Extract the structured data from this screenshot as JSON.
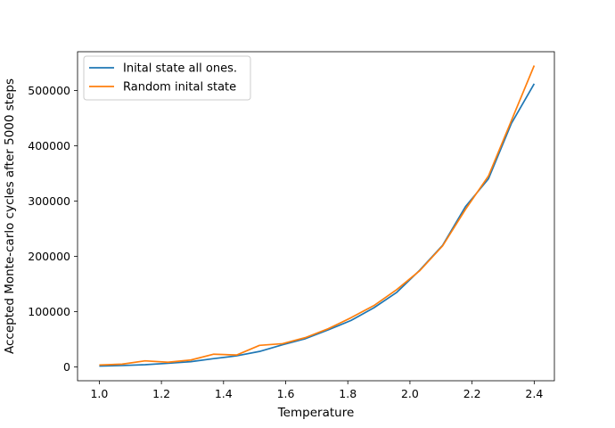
{
  "chart_data": {
    "type": "line",
    "title": "",
    "xlabel": "Temperature",
    "ylabel": "Accepted Monte-carlo cycles after 5000 steps",
    "xlim": [
      0.93,
      2.465
    ],
    "ylim": [
      -25000,
      570000
    ],
    "x_ticks": [
      1.0,
      1.2,
      1.4,
      1.6,
      1.8,
      2.0,
      2.2,
      2.4
    ],
    "x_tick_labels": [
      "1.0",
      "1.2",
      "1.4",
      "1.6",
      "1.8",
      "2.0",
      "2.2",
      "2.4"
    ],
    "y_ticks": [
      0,
      100000,
      200000,
      300000,
      400000,
      500000
    ],
    "y_tick_labels": [
      "0",
      "100000",
      "200000",
      "300000",
      "400000",
      "500000"
    ],
    "grid": false,
    "legend_position": "top-left",
    "x": [
      1.0,
      1.0737,
      1.1474,
      1.2211,
      1.2947,
      1.3684,
      1.4421,
      1.5158,
      1.5895,
      1.6632,
      1.7368,
      1.8105,
      1.8842,
      1.9579,
      2.0316,
      2.1053,
      2.1789,
      2.2526,
      2.3263,
      2.4
    ],
    "series": [
      {
        "name": "Inital state all ones.",
        "color": "#1f77b4",
        "values": [
          1500,
          2500,
          4000,
          6500,
          9500,
          15000,
          20000,
          28000,
          40000,
          51000,
          67000,
          84000,
          107000,
          135000,
          175000,
          220000,
          290000,
          340000,
          440000,
          512000
        ]
      },
      {
        "name": "Random inital state",
        "color": "#ff7f0e",
        "values": [
          3500,
          5000,
          11000,
          8500,
          12500,
          23000,
          21500,
          39000,
          42000,
          53000,
          69000,
          89000,
          111000,
          140000,
          174000,
          219000,
          285000,
          345000,
          445000,
          545000
        ]
      }
    ]
  }
}
